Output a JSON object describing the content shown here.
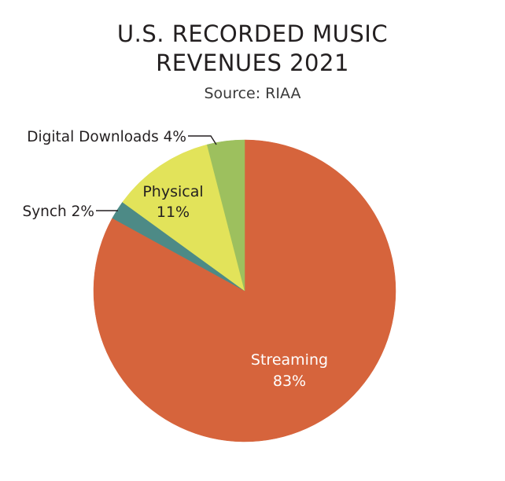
{
  "chart_data": {
    "type": "pie",
    "title_lines": [
      "U.S. RECORDED MUSIC",
      "REVENUES 2021"
    ],
    "subtitle": "Source: RIAA",
    "slices": [
      {
        "label": "Streaming",
        "pct_text": "83%",
        "value": 83,
        "color": "#d6643c",
        "label_style": "inside-light"
      },
      {
        "label": "Synch",
        "pct_text": "2%",
        "value": 2,
        "color": "#4d8a86",
        "label_style": "external"
      },
      {
        "label": "Physical",
        "pct_text": "11%",
        "value": 11,
        "color": "#e2e35a",
        "label_style": "inside-dark"
      },
      {
        "label": "Digital Downloads",
        "pct_text": "4%",
        "value": 4,
        "color": "#9dc05e",
        "label_style": "external"
      }
    ],
    "start_angle": "12 o'clock",
    "direction": "clockwise"
  },
  "labels": {
    "streaming_name": "Streaming",
    "streaming_pct": "83%",
    "physical_name": "Physical",
    "physical_pct": "11%",
    "synch": "Synch 2%",
    "digital_downloads": "Digital Downloads 4%"
  }
}
